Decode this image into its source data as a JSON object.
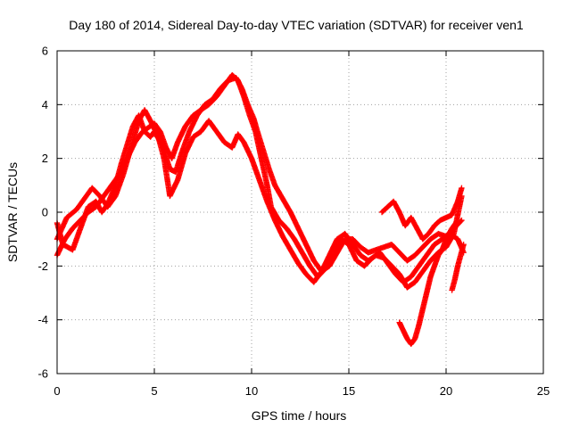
{
  "chart_data": {
    "type": "scatter",
    "title": "Day 180 of 2014, Sidereal Day-to-day VTEC variation (SDTVAR) for receiver ven1",
    "xlabel": "GPS time / hours",
    "ylabel": "SDTVAR / TECUs",
    "xlim": [
      0,
      25
    ],
    "ylim": [
      -6,
      6
    ],
    "xticks": [
      0,
      5,
      10,
      15,
      20,
      25
    ],
    "yticks": [
      -6,
      -4,
      -2,
      0,
      2,
      4,
      6
    ],
    "xtick_labels": [
      "0",
      "5",
      "10",
      "15",
      "20",
      "25"
    ],
    "ytick_labels": [
      "-6",
      "-4",
      "-2",
      "0",
      "2",
      "4",
      "6"
    ],
    "grid": true,
    "marker": "+",
    "color": "#ff0000",
    "series": [
      {
        "points": [
          [
            0.0,
            -0.4
          ],
          [
            0.3,
            -1.2
          ],
          [
            0.8,
            -1.4
          ],
          [
            1.2,
            -0.6
          ],
          [
            1.6,
            0.2
          ],
          [
            2.0,
            0.4
          ],
          [
            2.3,
            0.0
          ],
          [
            2.6,
            0.3
          ],
          [
            3.0,
            1.0
          ],
          [
            3.3,
            1.8
          ],
          [
            3.6,
            2.5
          ],
          [
            3.9,
            3.2
          ],
          [
            4.2,
            3.6
          ],
          [
            4.5,
            3.0
          ],
          [
            4.8,
            2.8
          ],
          [
            5.0,
            3.0
          ],
          [
            5.4,
            2.5
          ],
          [
            5.8,
            1.6
          ],
          [
            6.1,
            1.5
          ],
          [
            6.4,
            2.2
          ],
          [
            6.8,
            3.0
          ],
          [
            7.2,
            3.6
          ],
          [
            7.6,
            4.0
          ],
          [
            8.0,
            4.2
          ],
          [
            8.4,
            4.6
          ],
          [
            8.8,
            4.9
          ],
          [
            9.2,
            5.0
          ],
          [
            9.5,
            4.6
          ],
          [
            9.8,
            4.0
          ],
          [
            10.1,
            3.5
          ],
          [
            10.3,
            3.0
          ],
          [
            10.6,
            2.3
          ],
          [
            10.9,
            1.6
          ],
          [
            11.2,
            1.0
          ],
          [
            11.6,
            0.5
          ],
          [
            12.0,
            0.0
          ],
          [
            12.4,
            -0.6
          ],
          [
            12.8,
            -1.2
          ],
          [
            13.2,
            -1.8
          ],
          [
            13.6,
            -2.2
          ],
          [
            14.0,
            -2.0
          ],
          [
            14.4,
            -1.5
          ],
          [
            14.8,
            -1.0
          ],
          [
            15.2,
            -1.0
          ],
          [
            15.6,
            -1.3
          ],
          [
            16.0,
            -1.5
          ],
          [
            16.4,
            -1.4
          ],
          [
            16.8,
            -1.3
          ],
          [
            17.2,
            -1.2
          ],
          [
            17.6,
            -1.5
          ],
          [
            18.0,
            -1.8
          ],
          [
            18.4,
            -1.6
          ],
          [
            18.8,
            -1.3
          ],
          [
            19.2,
            -1.0
          ],
          [
            19.6,
            -0.8
          ],
          [
            20.0,
            -0.9
          ],
          [
            20.4,
            -0.6
          ],
          [
            20.8,
            -0.3
          ]
        ]
      },
      {
        "points": [
          [
            0.0,
            -1.6
          ],
          [
            0.4,
            -1.0
          ],
          [
            0.8,
            -0.6
          ],
          [
            1.2,
            -0.3
          ],
          [
            1.6,
            0.0
          ],
          [
            2.0,
            0.2
          ],
          [
            2.4,
            0.6
          ],
          [
            2.8,
            1.0
          ],
          [
            3.2,
            1.4
          ],
          [
            3.6,
            2.0
          ],
          [
            4.0,
            2.6
          ],
          [
            4.4,
            3.0
          ],
          [
            4.8,
            3.2
          ],
          [
            5.0,
            3.3
          ],
          [
            5.3,
            3.0
          ],
          [
            5.6,
            2.4
          ],
          [
            5.9,
            2.0
          ],
          [
            6.2,
            2.6
          ],
          [
            6.6,
            3.2
          ],
          [
            7.0,
            3.6
          ],
          [
            7.4,
            3.8
          ],
          [
            7.8,
            4.0
          ],
          [
            8.2,
            4.3
          ],
          [
            8.6,
            4.7
          ],
          [
            9.0,
            5.1
          ],
          [
            9.3,
            4.9
          ],
          [
            9.6,
            4.3
          ],
          [
            9.9,
            3.6
          ],
          [
            10.2,
            3.0
          ],
          [
            10.5,
            2.0
          ],
          [
            10.8,
            1.0
          ],
          [
            11.0,
            0.2
          ],
          [
            11.4,
            -0.3
          ],
          [
            11.8,
            -0.6
          ],
          [
            12.2,
            -1.0
          ],
          [
            12.6,
            -1.5
          ],
          [
            13.0,
            -2.0
          ],
          [
            13.4,
            -2.4
          ],
          [
            13.8,
            -2.1
          ],
          [
            14.2,
            -1.6
          ],
          [
            14.6,
            -1.0
          ],
          [
            15.0,
            -1.2
          ],
          [
            15.4,
            -1.8
          ],
          [
            15.8,
            -2.0
          ],
          [
            16.2,
            -1.7
          ],
          [
            16.6,
            -1.5
          ],
          [
            17.0,
            -1.9
          ],
          [
            17.4,
            -2.3
          ],
          [
            17.8,
            -2.6
          ],
          [
            18.2,
            -2.4
          ],
          [
            18.6,
            -2.0
          ],
          [
            19.0,
            -1.6
          ],
          [
            19.4,
            -1.2
          ],
          [
            19.8,
            -1.0
          ],
          [
            20.2,
            -0.8
          ],
          [
            20.6,
            -1.0
          ],
          [
            20.9,
            -1.5
          ]
        ]
      },
      {
        "points": [
          [
            0.0,
            -1.0
          ],
          [
            0.5,
            -0.2
          ],
          [
            1.0,
            0.1
          ],
          [
            1.4,
            0.5
          ],
          [
            1.8,
            0.9
          ],
          [
            2.2,
            0.6
          ],
          [
            2.6,
            0.2
          ],
          [
            3.0,
            0.6
          ],
          [
            3.4,
            1.4
          ],
          [
            3.8,
            2.4
          ],
          [
            4.2,
            3.4
          ],
          [
            4.5,
            3.8
          ],
          [
            4.8,
            3.4
          ],
          [
            5.2,
            2.8
          ],
          [
            5.5,
            2.0
          ],
          [
            5.8,
            0.6
          ],
          [
            6.2,
            1.2
          ],
          [
            6.6,
            2.2
          ],
          [
            7.0,
            2.8
          ],
          [
            7.4,
            3.0
          ],
          [
            7.8,
            3.4
          ],
          [
            8.2,
            3.0
          ],
          [
            8.6,
            2.6
          ],
          [
            9.0,
            2.4
          ],
          [
            9.3,
            2.9
          ],
          [
            9.6,
            2.6
          ],
          [
            10.0,
            2.0
          ],
          [
            10.4,
            1.2
          ],
          [
            10.8,
            0.4
          ],
          [
            11.2,
            -0.3
          ],
          [
            11.6,
            -0.9
          ],
          [
            12.0,
            -1.4
          ],
          [
            12.4,
            -1.9
          ],
          [
            12.8,
            -2.3
          ],
          [
            13.2,
            -2.6
          ],
          [
            13.6,
            -2.2
          ],
          [
            14.0,
            -1.6
          ],
          [
            14.4,
            -1.0
          ],
          [
            14.8,
            -0.8
          ],
          [
            15.2,
            -1.2
          ],
          [
            15.6,
            -1.6
          ],
          [
            16.0,
            -1.8
          ],
          [
            16.4,
            -1.6
          ],
          [
            16.8,
            -1.7
          ],
          [
            17.2,
            -2.0
          ],
          [
            17.6,
            -2.3
          ],
          [
            18.0,
            -2.8
          ],
          [
            18.4,
            -2.6
          ],
          [
            18.8,
            -2.2
          ],
          [
            19.2,
            -1.8
          ],
          [
            19.6,
            -1.5
          ],
          [
            20.0,
            -1.3
          ],
          [
            20.4,
            -0.8
          ],
          [
            20.8,
            0.6
          ]
        ]
      },
      {
        "points": [
          [
            16.7,
            0.0
          ],
          [
            17.0,
            0.2
          ],
          [
            17.3,
            0.4
          ],
          [
            17.6,
            0.0
          ],
          [
            17.9,
            -0.5
          ],
          [
            18.2,
            -0.2
          ],
          [
            18.5,
            -0.6
          ],
          [
            18.8,
            -1.0
          ],
          [
            19.1,
            -0.8
          ],
          [
            19.4,
            -0.5
          ],
          [
            19.7,
            -0.3
          ],
          [
            20.0,
            -0.2
          ],
          [
            20.3,
            -0.1
          ],
          [
            20.6,
            0.4
          ],
          [
            20.8,
            0.9
          ]
        ]
      },
      {
        "points": [
          [
            17.6,
            -4.1
          ],
          [
            17.8,
            -4.4
          ],
          [
            18.0,
            -4.7
          ],
          [
            18.2,
            -4.9
          ],
          [
            18.4,
            -4.7
          ],
          [
            18.6,
            -4.2
          ],
          [
            18.8,
            -3.6
          ],
          [
            19.0,
            -3.0
          ],
          [
            19.2,
            -2.4
          ],
          [
            19.4,
            -2.0
          ],
          [
            19.6,
            -1.6
          ],
          [
            19.8,
            -1.4
          ],
          [
            20.0,
            -1.0
          ],
          [
            20.3,
            -0.6
          ],
          [
            20.6,
            -0.3
          ]
        ]
      },
      {
        "points": [
          [
            20.3,
            -2.9
          ],
          [
            20.45,
            -2.5
          ],
          [
            20.6,
            -2.0
          ],
          [
            20.75,
            -1.6
          ],
          [
            20.9,
            -1.2
          ]
        ]
      }
    ]
  }
}
